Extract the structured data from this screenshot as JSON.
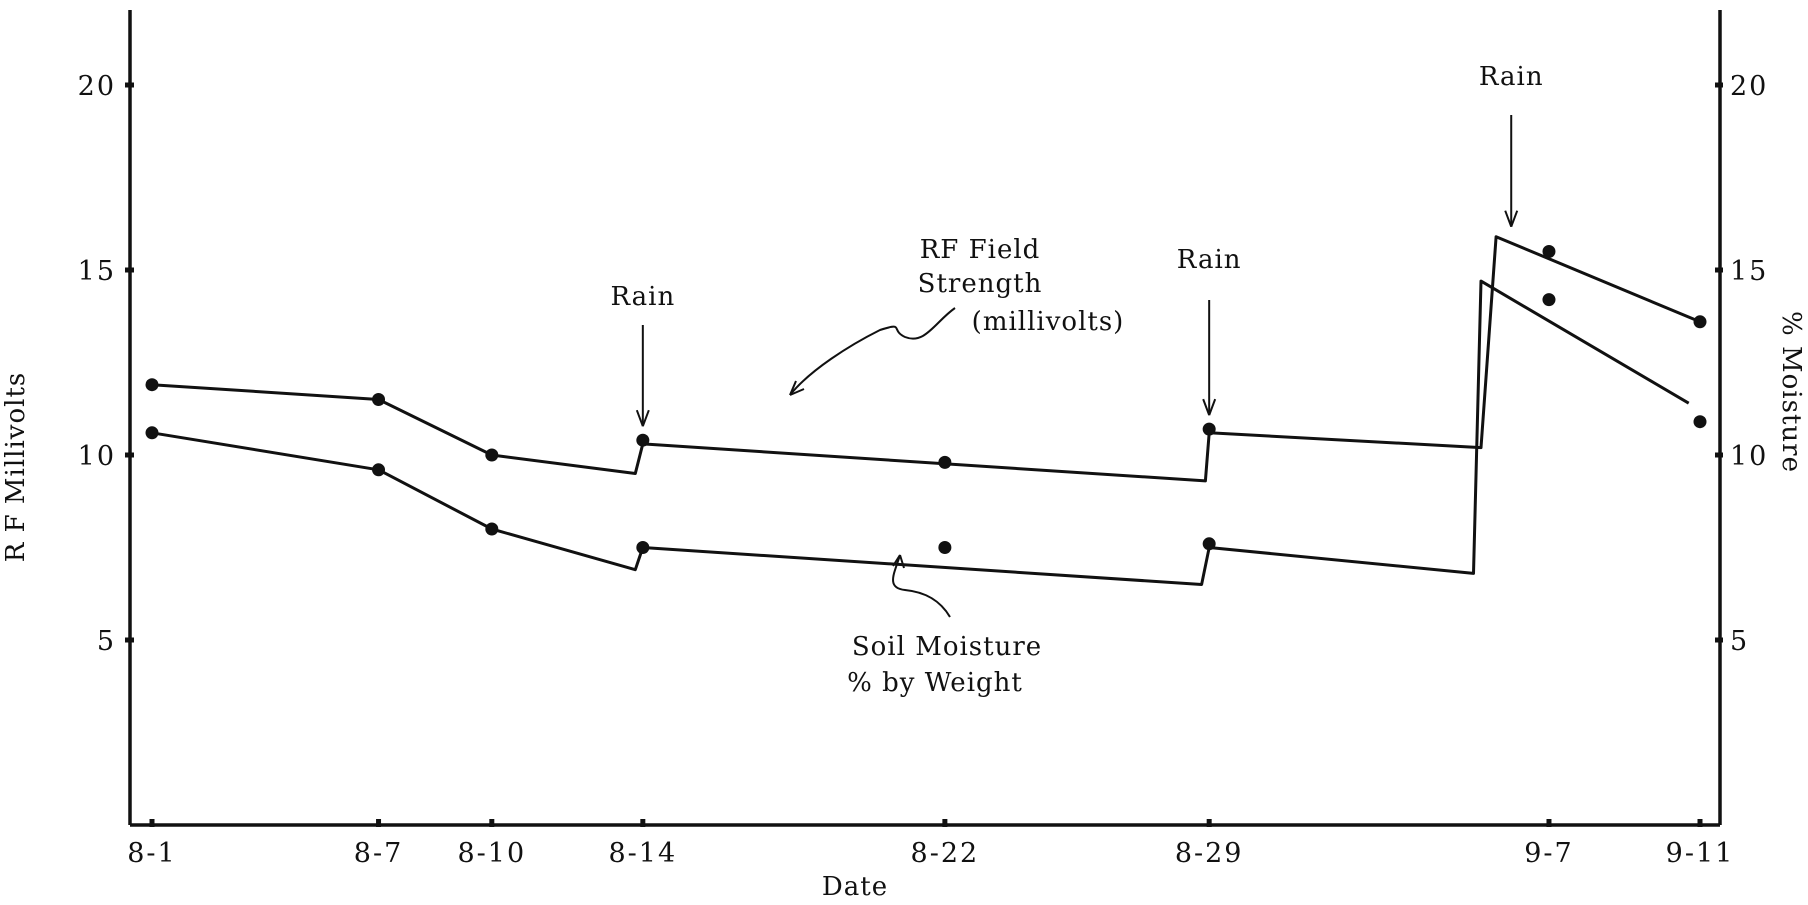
{
  "chart_data": {
    "type": "line",
    "xlabel": "Date",
    "ylabel": "R F Millivolts",
    "y2label": "% Moisture",
    "ylim": [
      0,
      21
    ],
    "y2lim": [
      0,
      21
    ],
    "yticks": [
      "5",
      "10",
      "15",
      "20"
    ],
    "y2ticks": [
      "5",
      "10",
      "15",
      "20"
    ],
    "x_ticks": [
      "8-1",
      "8-7",
      "8-10",
      "8-14",
      "8-22",
      "8-29",
      "9-7",
      "9-11"
    ],
    "x_days": [
      1,
      7,
      10,
      14,
      22,
      29,
      38,
      42
    ],
    "series": [
      {
        "name": "RF Field Strength (millivolts)",
        "points": [
          [
            1,
            11.9
          ],
          [
            7,
            11.5
          ],
          [
            10,
            10.0
          ],
          [
            14,
            10.4
          ],
          [
            22,
            9.8
          ],
          [
            29,
            10.7
          ],
          [
            38,
            15.5
          ],
          [
            42,
            13.6
          ]
        ],
        "line": [
          [
            1,
            11.9
          ],
          [
            7,
            11.5
          ],
          [
            10,
            10.0
          ],
          [
            13.8,
            9.5
          ],
          [
            14,
            10.3
          ],
          [
            28.9,
            9.3
          ],
          [
            29,
            10.6
          ],
          [
            36.2,
            10.2
          ],
          [
            36.6,
            15.9
          ],
          [
            42,
            13.6
          ]
        ]
      },
      {
        "name": "Soil Moisture % by Weight",
        "points": [
          [
            1,
            10.6
          ],
          [
            7,
            9.6
          ],
          [
            10,
            8.0
          ],
          [
            14,
            7.5
          ],
          [
            22,
            7.5
          ],
          [
            29,
            7.6
          ],
          [
            38,
            14.2
          ],
          [
            42,
            10.9
          ]
        ],
        "line": [
          [
            1,
            10.6
          ],
          [
            7,
            9.6
          ],
          [
            10,
            8.0
          ],
          [
            13.8,
            6.9
          ],
          [
            14,
            7.5
          ],
          [
            28.8,
            6.5
          ],
          [
            29,
            7.5
          ],
          [
            36.0,
            6.8
          ],
          [
            36.2,
            14.7
          ],
          [
            41.7,
            11.4
          ]
        ]
      }
    ],
    "annotations": {
      "rain": "Rain",
      "rf_label_line1": "RF Field",
      "rf_label_line2": "Strength",
      "rf_label_line3": "(millivolts)",
      "soil_label_line1": "Soil Moisture",
      "soil_label_line2": "% by Weight"
    },
    "rain_days": [
      14,
      29,
      37
    ],
    "grid": false
  }
}
